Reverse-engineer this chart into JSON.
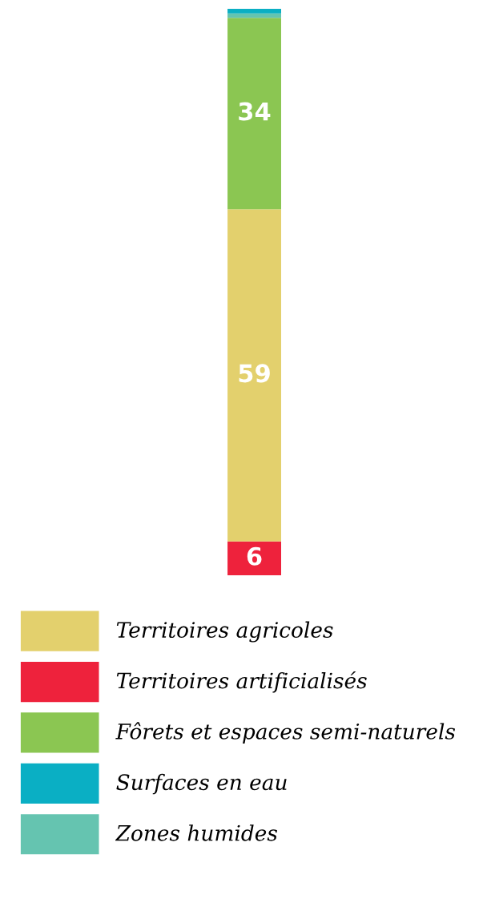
{
  "chart_data": {
    "type": "bar",
    "stacked": true,
    "categories": [
      null
    ],
    "legend": "bottom",
    "series": [
      {
        "name": "Territoires artificialisés",
        "color": "#ee223c",
        "values": [
          6
        ],
        "value_labels": [
          "6"
        ]
      },
      {
        "name": "Territoires agricoles",
        "color": "#e3d06d",
        "values": [
          59
        ],
        "value_labels": [
          "59"
        ]
      },
      {
        "name": "Fôrets et espaces semi-naturels",
        "color": "#8bc652",
        "values": [
          34
        ],
        "value_labels": [
          "34"
        ]
      },
      {
        "name": "Zones humides",
        "color": "#65c4b0",
        "values": [
          0.8
        ],
        "value_labels": [
          null
        ]
      },
      {
        "name": "Surfaces en eau",
        "color": "#0aafc4",
        "values": [
          0.8
        ],
        "value_labels": [
          null
        ]
      }
    ]
  }
}
